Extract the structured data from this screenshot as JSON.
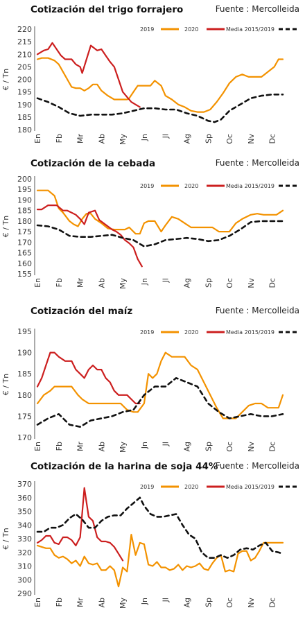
{
  "chart_data": [
    {
      "type": "line",
      "title": "Cotización del trigo forrajero",
      "source": "Fuente : Mercolleida",
      "ylabel": "€ / Tn",
      "months": [
        "En",
        "Fb",
        "Mr",
        "Ab",
        "My",
        "Jn",
        "Jl",
        "Ag",
        "Sp",
        "Oc",
        "Nv",
        "Dc"
      ],
      "yticks": [
        180,
        185,
        190,
        195,
        200,
        205,
        210,
        215,
        220
      ],
      "ylim": [
        180,
        220
      ],
      "xlim": [
        0,
        11.5
      ],
      "legend": [
        "2019",
        "2020",
        "Media 2015/2019"
      ],
      "series": [
        {
          "name": "2019",
          "color": "#f39200",
          "dashed": false,
          "x": [
            0,
            0.2,
            0.5,
            0.8,
            1.0,
            1.2,
            1.4,
            1.6,
            1.8,
            2.0,
            2.2,
            2.4,
            2.6,
            2.8,
            3.0,
            3.3,
            3.6,
            3.9,
            4.2,
            4.3,
            4.5,
            4.7,
            4.9,
            5.0,
            5.3,
            5.5,
            5.8,
            6.0,
            6.3,
            6.6,
            6.9,
            7.2,
            7.5,
            7.8,
            8.1,
            8.4,
            8.7,
            9.0,
            9.3,
            9.6,
            9.9,
            10.2,
            10.5,
            10.8,
            11.1,
            11.3,
            11.5
          ],
          "y": [
            208,
            208.5,
            208.5,
            207.5,
            206,
            203,
            200,
            197,
            196.5,
            196.5,
            195.5,
            196.5,
            198,
            198,
            195.5,
            193.5,
            192,
            192,
            192,
            192.5,
            195,
            197.5,
            197.5,
            197.5,
            197.5,
            199.5,
            197.5,
            193.5,
            192,
            190,
            189,
            187.5,
            187,
            187,
            188,
            191,
            194.5,
            198.5,
            201,
            202,
            201,
            201,
            201,
            203,
            205,
            208,
            208
          ]
        },
        {
          "name": "2020",
          "color": "#cc1f1f",
          "dashed": false,
          "x": [
            0,
            0.3,
            0.5,
            0.7,
            0.9,
            1.1,
            1.3,
            1.6,
            1.8,
            2.0,
            2.1,
            2.3,
            2.5,
            2.8,
            3.0,
            3.2,
            3.4,
            3.6,
            3.8,
            4.0,
            4.2,
            4.4,
            4.6,
            4.8
          ],
          "y": [
            210,
            211.5,
            212,
            214.5,
            212,
            209.5,
            208,
            208,
            206,
            205,
            202.5,
            208,
            213.5,
            211.5,
            212,
            209.5,
            207,
            205,
            200,
            195,
            193,
            191,
            190,
            189
          ]
        },
        {
          "name": "Media 2015/2019",
          "color": "#111111",
          "dashed": true,
          "x": [
            0,
            0.5,
            1.0,
            1.5,
            2.0,
            2.5,
            3.0,
            3.5,
            4.0,
            4.5,
            5.0,
            5.5,
            6.0,
            6.5,
            7.0,
            7.5,
            8.0,
            8.3,
            8.6,
            9.0,
            9.5,
            10.0,
            10.5,
            11.0,
            11.5
          ],
          "y": [
            192.5,
            191,
            189,
            186.5,
            185.5,
            186,
            186,
            186,
            186.5,
            187.5,
            188.5,
            188.5,
            188,
            188,
            186.5,
            185.5,
            183.5,
            183,
            184,
            187.5,
            190,
            192.5,
            193.5,
            194,
            194
          ]
        }
      ]
    },
    {
      "type": "line",
      "title": "Cotización de la cebada",
      "source": "Fuente : Mercolleida",
      "ylabel": "€ / Tn",
      "months": [
        "En",
        "Fb",
        "Mr",
        "Ab",
        "My",
        "Jn",
        "Jl",
        "Ag",
        "Sp",
        "Oc",
        "Nv",
        "Dc"
      ],
      "yticks": [
        155,
        160,
        165,
        170,
        175,
        180,
        185,
        190,
        195,
        200
      ],
      "ylim": [
        155,
        200
      ],
      "xlim": [
        0,
        11.5
      ],
      "legend": [
        "2019",
        "2020",
        "Media 2015/2019"
      ],
      "series": [
        {
          "name": "2019",
          "color": "#f39200",
          "dashed": false,
          "x": [
            0,
            0.3,
            0.5,
            0.8,
            1.0,
            1.2,
            1.5,
            1.7,
            1.9,
            2.1,
            2.3,
            2.5,
            2.7,
            3.0,
            3.3,
            3.6,
            3.9,
            4.1,
            4.3,
            4.6,
            4.8,
            5.0,
            5.2,
            5.5,
            5.8,
            6.0,
            6.3,
            6.6,
            6.9,
            7.2,
            7.5,
            7.8,
            8.2,
            8.5,
            8.8,
            9.0,
            9.3,
            9.6,
            10.0,
            10.3,
            10.6,
            10.9,
            11.2,
            11.5
          ],
          "y": [
            194.5,
            194.5,
            194.5,
            192,
            186,
            184,
            180,
            178.5,
            177.5,
            181,
            183.5,
            183.5,
            181,
            179,
            176.5,
            176,
            176,
            176,
            177,
            174,
            174,
            179,
            180,
            180,
            175,
            178,
            182,
            181,
            179,
            177,
            177,
            177,
            177,
            175,
            175,
            175,
            179,
            181,
            183,
            183.5,
            183,
            183,
            183,
            185
          ]
        },
        {
          "name": "2020",
          "color": "#cc1f1f",
          "dashed": false,
          "x": [
            0,
            0.2,
            0.5,
            0.7,
            0.9,
            1.2,
            1.4,
            1.6,
            1.8,
            2.0,
            2.2,
            2.4,
            2.7,
            2.9,
            3.1,
            3.3,
            3.5,
            3.7,
            3.9,
            4.1,
            4.3,
            4.5,
            4.7,
            4.9
          ],
          "y": [
            185.5,
            185.5,
            187.5,
            187.5,
            187.5,
            185,
            185,
            184,
            183,
            181,
            178.5,
            184,
            185,
            180.5,
            179,
            177.5,
            176,
            175,
            173.5,
            171,
            169.5,
            167.5,
            162,
            158.5
          ]
        },
        {
          "name": "Media 2015/2019",
          "color": "#111111",
          "dashed": true,
          "x": [
            0,
            0.5,
            1.0,
            1.5,
            2.0,
            2.5,
            3.0,
            3.5,
            4.0,
            4.5,
            5.0,
            5.5,
            6.0,
            6.5,
            7.0,
            7.5,
            8.0,
            8.5,
            9.0,
            9.5,
            10.0,
            10.5,
            11.0,
            11.5
          ],
          "y": [
            178,
            177.5,
            176,
            173,
            172.5,
            172.5,
            173,
            173.5,
            172,
            171,
            168,
            169,
            171,
            171.5,
            172,
            171.5,
            170.5,
            171,
            173,
            176,
            179.5,
            180,
            180,
            180
          ]
        }
      ]
    },
    {
      "type": "line",
      "title": "Cotización del maíz",
      "source": "Fuente : Mercolleida",
      "ylabel": "€ / Tn",
      "months": [
        "En",
        "Fb",
        "Mr",
        "Ab",
        "My",
        "Jn",
        "Jl",
        "Ag",
        "Sp",
        "Oc",
        "Nv",
        "Dc"
      ],
      "yticks": [
        170,
        175,
        180,
        185,
        190,
        195
      ],
      "ylim": [
        170,
        195
      ],
      "xlim": [
        0,
        11.5
      ],
      "legend": [
        "2019",
        "2020",
        "Media 2015/2019"
      ],
      "series": [
        {
          "name": "2019",
          "color": "#f39200",
          "dashed": false,
          "x": [
            0,
            0.3,
            0.6,
            0.8,
            1.0,
            1.3,
            1.6,
            1.9,
            2.1,
            2.4,
            2.7,
            3.0,
            3.3,
            3.6,
            3.9,
            4.2,
            4.5,
            4.7,
            5.0,
            5.2,
            5.4,
            5.6,
            5.8,
            6.0,
            6.3,
            6.6,
            6.9,
            7.2,
            7.5,
            7.8,
            8.1,
            8.4,
            8.7,
            9.0,
            9.3,
            9.6,
            9.9,
            10.2,
            10.5,
            10.8,
            11.1,
            11.3,
            11.5
          ],
          "y": [
            178,
            180,
            181,
            182,
            182,
            182,
            182,
            180,
            179,
            178,
            178,
            178,
            178,
            178,
            178,
            176.5,
            176,
            176,
            178,
            185,
            184,
            185,
            188,
            190,
            189,
            189,
            189,
            187,
            186,
            183,
            180,
            177,
            174.5,
            174.5,
            174.5,
            176,
            177.5,
            178,
            178,
            177,
            177,
            177,
            180
          ]
        },
        {
          "name": "2020",
          "color": "#cc1f1f",
          "dashed": false,
          "x": [
            0,
            0.2,
            0.4,
            0.6,
            0.8,
            1.0,
            1.3,
            1.6,
            1.8,
            2.0,
            2.2,
            2.4,
            2.6,
            2.8,
            3.0,
            3.2,
            3.4,
            3.6,
            3.8,
            4.0,
            4.2,
            4.4,
            4.6,
            4.8
          ],
          "y": [
            182,
            184,
            187,
            190,
            190,
            189,
            188,
            188,
            186,
            185,
            184,
            186,
            187,
            186,
            186,
            184,
            183,
            181,
            180,
            180,
            180,
            179,
            178,
            178
          ]
        },
        {
          "name": "Media 2015/2019",
          "color": "#111111",
          "dashed": true,
          "x": [
            0,
            0.5,
            1.0,
            1.5,
            2.0,
            2.5,
            3.0,
            3.5,
            4.0,
            4.5,
            5.0,
            5.5,
            6.0,
            6.5,
            7.0,
            7.5,
            8.0,
            8.5,
            9.0,
            9.5,
            10.0,
            10.5,
            11.0,
            11.5
          ],
          "y": [
            173,
            174.5,
            175.5,
            173,
            172.5,
            174,
            174.5,
            175,
            176,
            176.5,
            180,
            182,
            182,
            184,
            183,
            182,
            178,
            176,
            174.5,
            175,
            175.5,
            175,
            175,
            175.5
          ]
        }
      ]
    },
    {
      "type": "line",
      "title": "Cotización de la harina de soja 44%",
      "source": "Fuente : Mercolleida",
      "ylabel": "€ / Tn",
      "months": [
        "En",
        "Fb",
        "Mr",
        "Ab",
        "My",
        "Jn",
        "Jl",
        "Ag",
        "Sp",
        "Oc",
        "Nv",
        "Dc"
      ],
      "yticks": [
        290,
        300,
        310,
        320,
        330,
        340,
        350,
        360,
        370
      ],
      "ylim": [
        290,
        370
      ],
      "xlim": [
        0,
        11.5
      ],
      "legend": [
        "2019",
        "2020",
        "Media 2015/2019"
      ],
      "series": [
        {
          "name": "2019",
          "color": "#f39200",
          "dashed": false,
          "x": [
            0,
            0.2,
            0.4,
            0.6,
            0.8,
            1.0,
            1.2,
            1.4,
            1.6,
            1.8,
            2.0,
            2.2,
            2.4,
            2.6,
            2.8,
            3.0,
            3.2,
            3.4,
            3.6,
            3.8,
            4.0,
            4.2,
            4.4,
            4.6,
            4.8,
            5.0,
            5.2,
            5.4,
            5.6,
            5.8,
            6.0,
            6.2,
            6.4,
            6.6,
            6.8,
            7.0,
            7.2,
            7.4,
            7.6,
            7.8,
            8.0,
            8.2,
            8.4,
            8.6,
            8.8,
            9.0,
            9.2,
            9.4,
            9.6,
            9.8,
            10.0,
            10.2,
            10.4,
            10.6,
            10.8,
            11.0,
            11.2,
            11.5
          ],
          "y": [
            325,
            324,
            323,
            323,
            318,
            316,
            317,
            315,
            312,
            314,
            310,
            317,
            312,
            311,
            312,
            307,
            307,
            310,
            307,
            295,
            309,
            306,
            333,
            318,
            327,
            326,
            311,
            310,
            313,
            309,
            309,
            307,
            308,
            311,
            307,
            310,
            309,
            310,
            312,
            308,
            307,
            312,
            316,
            318,
            306,
            307,
            306,
            319,
            321,
            321,
            314,
            316,
            321,
            327,
            327,
            327,
            327,
            327
          ]
        },
        {
          "name": "2020",
          "color": "#cc1f1f",
          "dashed": false,
          "x": [
            0,
            0.2,
            0.4,
            0.6,
            0.8,
            1.0,
            1.2,
            1.4,
            1.6,
            1.8,
            2.0,
            2.2,
            2.4,
            2.6,
            2.8,
            3.0,
            3.2,
            3.4,
            3.6,
            3.8,
            4.0
          ],
          "y": [
            327,
            329,
            332,
            332,
            327,
            326,
            331,
            331,
            329,
            325,
            331,
            367,
            346,
            343,
            331,
            328,
            328,
            327,
            324,
            319,
            314
          ]
        },
        {
          "name": "Media 2015/2019",
          "color": "#111111",
          "dashed": true,
          "x": [
            0,
            0.3,
            0.6,
            0.9,
            1.2,
            1.5,
            1.8,
            2.1,
            2.4,
            2.7,
            3.0,
            3.3,
            3.6,
            3.9,
            4.2,
            4.5,
            4.8,
            5.0,
            5.3,
            5.6,
            5.9,
            6.2,
            6.5,
            6.8,
            7.1,
            7.4,
            7.7,
            8.0,
            8.3,
            8.6,
            8.9,
            9.2,
            9.5,
            9.8,
            10.1,
            10.4,
            10.7,
            11.0,
            11.3,
            11.5
          ],
          "y": [
            335,
            335,
            338,
            338,
            340,
            345,
            348,
            344,
            338,
            338,
            343,
            346,
            347,
            347,
            352,
            356,
            360,
            354,
            348,
            346,
            346,
            347,
            348,
            340,
            333,
            330,
            320,
            316,
            316,
            318,
            316,
            318,
            322,
            323,
            322,
            325,
            327,
            321,
            320,
            319
          ]
        }
      ]
    }
  ]
}
